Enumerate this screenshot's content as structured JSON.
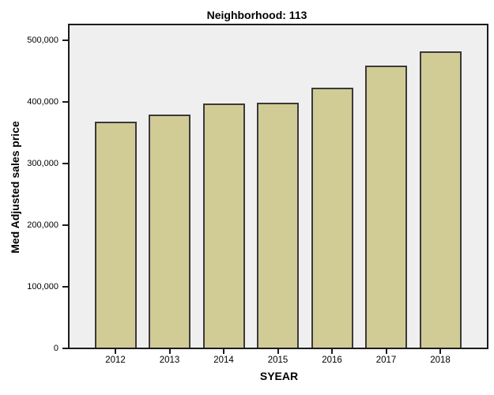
{
  "chart_data": {
    "type": "bar",
    "title": "Neighborhood: 113",
    "xlabel": "SYEAR",
    "ylabel": "Med Adjusted sales price",
    "categories": [
      "2012",
      "2013",
      "2014",
      "2015",
      "2016",
      "2017",
      "2018"
    ],
    "values": [
      369000,
      381000,
      399000,
      400000,
      425000,
      460000,
      483000
    ],
    "ylim": [
      0,
      500000
    ],
    "ytick_step": 100000,
    "ytick_labels": [
      "0",
      "100,000",
      "200,000",
      "300,000",
      "400,000",
      "500,000"
    ],
    "grid": false,
    "legend_position": "none",
    "bar_color": "#d1cc96",
    "bar_border_color": "#3a3a3a",
    "plot_background_color": "#efefef",
    "frame_color": "#1c1c1c"
  }
}
